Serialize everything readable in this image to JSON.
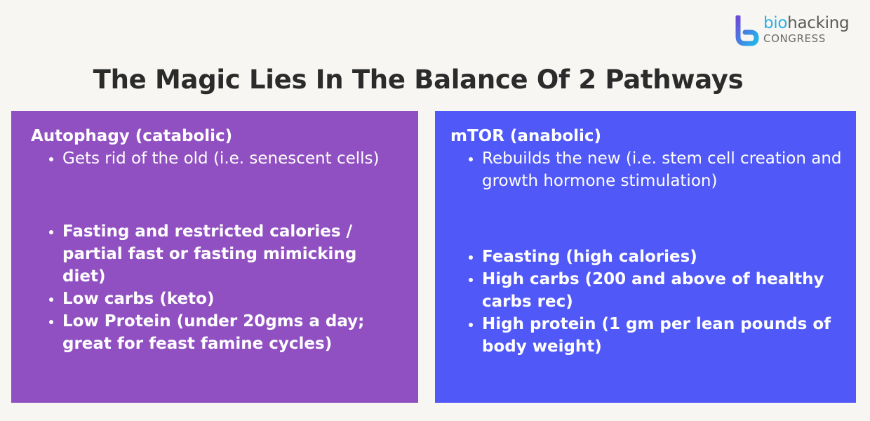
{
  "logo": {
    "word_accent": "bio",
    "word_rest": "hacking",
    "subtitle": "CONGRESS"
  },
  "title": "The Magic Lies In The Balance Of 2 Pathways",
  "panels": {
    "left": {
      "color": "#9150c1",
      "heading": "Autophagy (catabolic)",
      "description_items": [
        "Gets rid of the old (i.e. senescent cells)"
      ],
      "bold_items": [
        "Fasting and restricted calories / partial fast or fasting mimicking diet)",
        "Low carbs (keto)",
        "Low Protein (under 20gms a day; great for feast famine cycles)"
      ]
    },
    "right": {
      "color": "#5059f7",
      "heading": "mTOR (anabolic)",
      "description_items": [
        "Rebuilds the new (i.e. stem cell creation and growth hormone stimulation)"
      ],
      "bold_items": [
        "Feasting (high calories)",
        "High carbs (200 and above of healthy carbs rec)",
        "High protein (1 gm per lean pounds of body weight)"
      ]
    }
  }
}
